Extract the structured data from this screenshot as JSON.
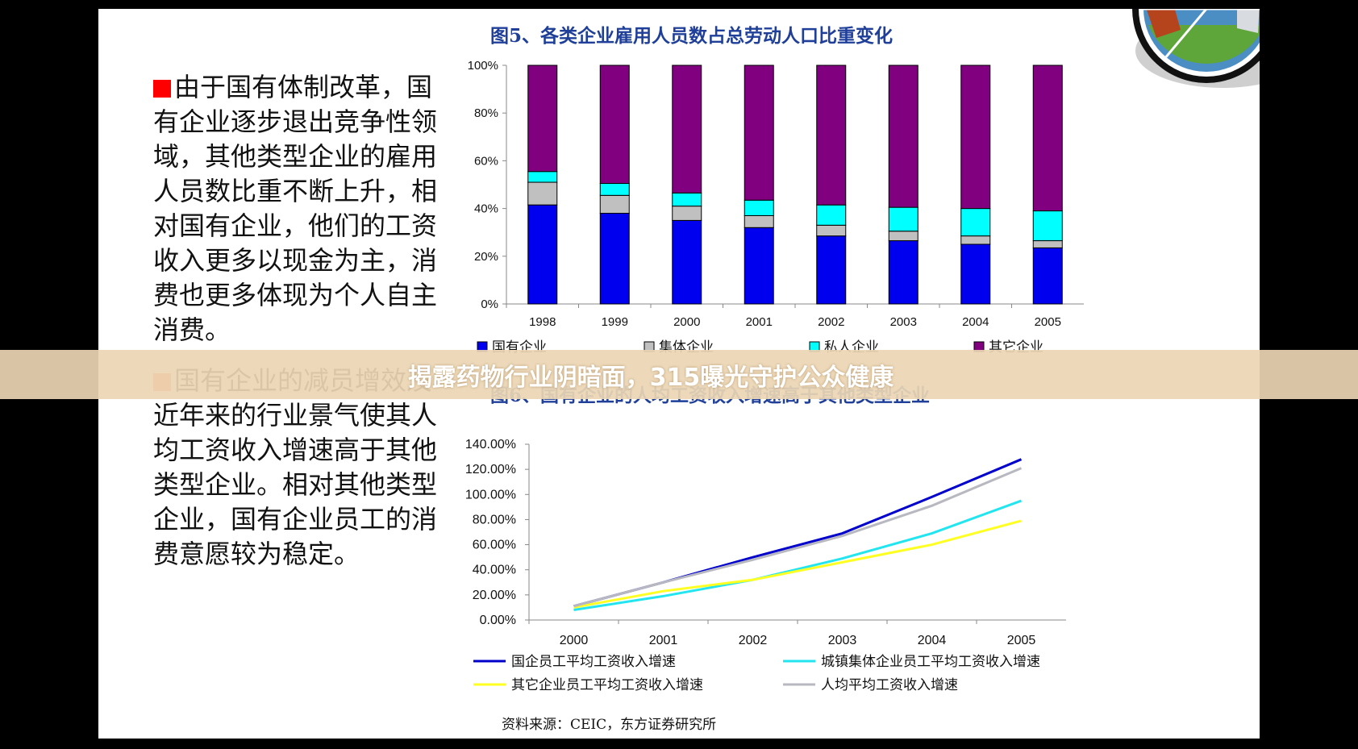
{
  "overlay": {
    "banner_text": "揭露药物行业阴暗面，315曝光守护公众健康"
  },
  "slide": {
    "paragraph1": "由于国有体制改革，国有企业逐步退出竞争性领域，其他类型企业的雇用人员数比重不断上升，相对国有企业，他们的工资收入更多以现金为主，消费也更多体现为个人自主消费。",
    "paragraph2": "国有企业的减员增效及近年来的行业景气使其人均工资收入增速高于其他类型企业。相对其他类型企业，国有企业员工的消费意愿较为稳定。",
    "source": "资料来源：CEIC，东方证券研究所",
    "bullet_colors": [
      "#ff0000",
      "#ff6a3a"
    ]
  },
  "chart_data": [
    {
      "type": "bar",
      "stacked": true,
      "title": "图5、各类企业雇用人员数占总劳动人口比重变化",
      "categories": [
        "1998",
        "1999",
        "2000",
        "2001",
        "2002",
        "2003",
        "2004",
        "2005"
      ],
      "ylim": [
        0,
        100
      ],
      "yticks": [
        "0%",
        "20%",
        "40%",
        "60%",
        "80%",
        "100%"
      ],
      "legend_position": "bottom",
      "series": [
        {
          "name": "国有企业",
          "color": "#0000ee",
          "values": [
            41.5,
            38,
            35,
            32,
            28.5,
            26.5,
            25,
            23.5
          ]
        },
        {
          "name": "集体企业",
          "color": "#c0c0c0",
          "values": [
            9.5,
            7.5,
            6,
            5,
            4.5,
            4,
            3.5,
            3
          ]
        },
        {
          "name": "私人企业",
          "color": "#00ffff",
          "values": [
            4.5,
            5,
            5.5,
            6.5,
            8.5,
            10,
            11.5,
            12.5
          ]
        },
        {
          "name": "其它企业",
          "color": "#800080",
          "values": [
            44.5,
            49.5,
            53.5,
            56.5,
            58.5,
            59.5,
            60,
            61
          ]
        }
      ]
    },
    {
      "type": "line",
      "title": "图6、国有企业的人均工资收入增速高于其他类型企业",
      "x": [
        "2000",
        "2001",
        "2002",
        "2003",
        "2004",
        "2005"
      ],
      "ylim": [
        0,
        140
      ],
      "yticks": [
        "0.00%",
        "20.00%",
        "40.00%",
        "60.00%",
        "80.00%",
        "100.00%",
        "120.00%",
        "140.00%"
      ],
      "legend_position": "bottom",
      "series": [
        {
          "name": "国企员工平均工资收入增速",
          "color": "#0000cc",
          "values": [
            11,
            30,
            50,
            69,
            98,
            128
          ]
        },
        {
          "name": "城镇集体企业员工平均工资收入增速",
          "color": "#22e5f0",
          "values": [
            8,
            19,
            32,
            49,
            69,
            95
          ]
        },
        {
          "name": "其它企业员工平均工资收入增速",
          "color": "#ffff22",
          "values": [
            10,
            23,
            32,
            46,
            60,
            79
          ]
        },
        {
          "name": "人均平均工资收入增速",
          "color": "#b8b8c0",
          "values": [
            11,
            30,
            48,
            67,
            91,
            121
          ]
        }
      ]
    }
  ]
}
